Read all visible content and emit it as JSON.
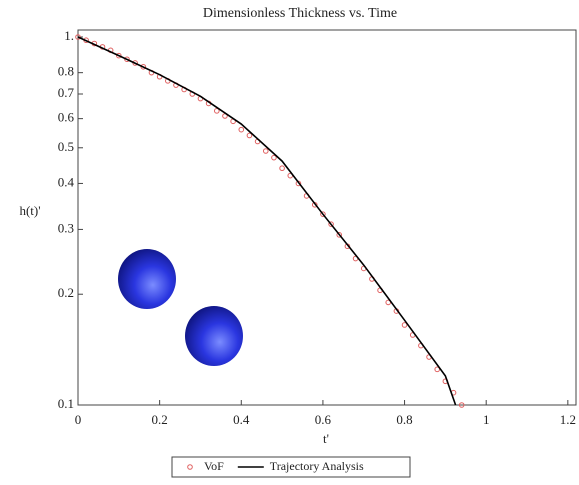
{
  "chart_data": {
    "type": "scatter-line",
    "title": "Dimensionless Thickness vs. Time",
    "xlabel": "t'",
    "ylabel": "h(t)'",
    "xlim": [
      0,
      1.22
    ],
    "xticks": [
      0,
      0.2,
      0.4,
      0.6,
      0.8,
      1,
      1.2
    ],
    "ylim": [
      0.1,
      1
    ],
    "ylog": true,
    "yticks": [
      0.1,
      0.2,
      0.3,
      0.4,
      0.5,
      0.6,
      0.7,
      0.8,
      {
        "value": 1,
        "label": "1."
      }
    ],
    "series": [
      {
        "name": "VoF",
        "kind": "scatter",
        "color": "#e06060",
        "x": [
          0,
          0.02,
          0.04,
          0.06,
          0.08,
          0.1,
          0.12,
          0.14,
          0.16,
          0.18,
          0.2,
          0.22,
          0.24,
          0.26,
          0.28,
          0.3,
          0.32,
          0.34,
          0.36,
          0.38,
          0.4,
          0.42,
          0.44,
          0.46,
          0.48,
          0.5,
          0.52,
          0.54,
          0.56,
          0.58,
          0.6,
          0.62,
          0.64,
          0.66,
          0.68,
          0.7,
          0.72,
          0.74,
          0.76,
          0.78,
          0.8,
          0.82,
          0.84,
          0.86,
          0.88,
          0.9,
          0.92,
          0.94
        ],
        "values": [
          1,
          0.98,
          0.96,
          0.94,
          0.92,
          0.89,
          0.87,
          0.85,
          0.83,
          0.8,
          0.78,
          0.76,
          0.74,
          0.72,
          0.7,
          0.68,
          0.66,
          0.63,
          0.61,
          0.59,
          0.56,
          0.54,
          0.52,
          0.49,
          0.47,
          0.44,
          0.42,
          0.4,
          0.37,
          0.35,
          0.33,
          0.31,
          0.29,
          0.27,
          0.25,
          0.235,
          0.22,
          0.205,
          0.19,
          0.18,
          0.165,
          0.155,
          0.145,
          0.135,
          0.125,
          0.116,
          0.108,
          0.1
        ]
      },
      {
        "name": "Trajectory Analysis",
        "kind": "line",
        "color": "#000000",
        "x": [
          0,
          0.1,
          0.2,
          0.3,
          0.4,
          0.5,
          0.6,
          0.7,
          0.8,
          0.9,
          0.925
        ],
        "values": [
          1,
          0.89,
          0.79,
          0.69,
          0.58,
          0.46,
          0.33,
          0.24,
          0.17,
          0.12,
          0.1
        ]
      }
    ]
  }
}
